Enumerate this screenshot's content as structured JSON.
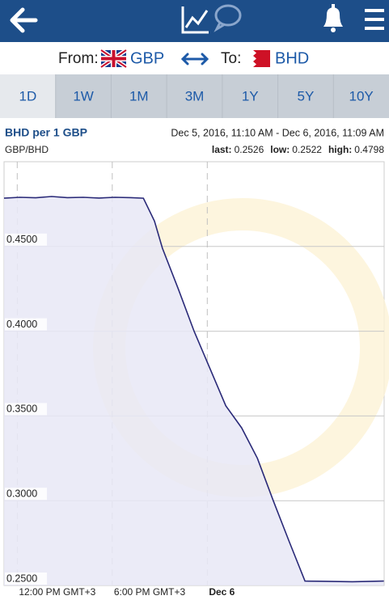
{
  "selector": {
    "from_label": "From:",
    "from_currency": "GBP",
    "to_label": "To:",
    "to_currency": "BHD"
  },
  "tabs": {
    "items": [
      "1D",
      "1W",
      "1M",
      "3M",
      "1Y",
      "5Y",
      "10Y"
    ],
    "selected": 0
  },
  "info": {
    "date_range": "Dec 5, 2016, 11:10 AM - Dec 6, 2016, 11:09 AM",
    "stats": [
      {
        "label": "last:",
        "value": "0.2526"
      },
      {
        "label": "low:",
        "value": "0.2522"
      },
      {
        "label": "high:",
        "value": "0.4798"
      }
    ]
  },
  "chart_data": {
    "type": "line",
    "title": "BHD per 1 GBP",
    "subtitle": "GBP/BHD",
    "x": [
      0,
      1,
      2,
      3,
      4,
      5,
      6,
      7,
      8,
      8.8,
      9.5,
      10,
      11,
      12,
      13,
      14,
      15,
      16,
      17,
      18,
      19,
      20,
      22,
      23.98
    ],
    "series": [
      {
        "name": "GBP/BHD",
        "color": "#2a2a78",
        "values": [
          0.4785,
          0.479,
          0.4787,
          0.4795,
          0.4788,
          0.479,
          0.4786,
          0.479,
          0.4788,
          0.4785,
          0.465,
          0.449,
          0.425,
          0.4,
          0.378,
          0.356,
          0.343,
          0.325,
          0.3,
          0.276,
          0.2526,
          0.2525,
          0.2522,
          0.2526
        ]
      }
    ],
    "xlim": [
      0,
      24
    ],
    "xticks": [
      {
        "value": 0.833,
        "label": "12:00 PM GMT+3"
      },
      {
        "value": 6.833,
        "label": "6:00 PM GMT+3"
      },
      {
        "value": 12.833,
        "label": "Dec 6"
      }
    ],
    "ylim": [
      0.25,
      0.5
    ],
    "yticks": [
      {
        "value": 0.25,
        "label": "0.2500"
      },
      {
        "value": 0.3,
        "label": "0.3000"
      },
      {
        "value": 0.35,
        "label": "0.3500"
      },
      {
        "value": 0.4,
        "label": "0.4000"
      },
      {
        "value": 0.45,
        "label": "0.4500"
      }
    ],
    "grid": true
  }
}
